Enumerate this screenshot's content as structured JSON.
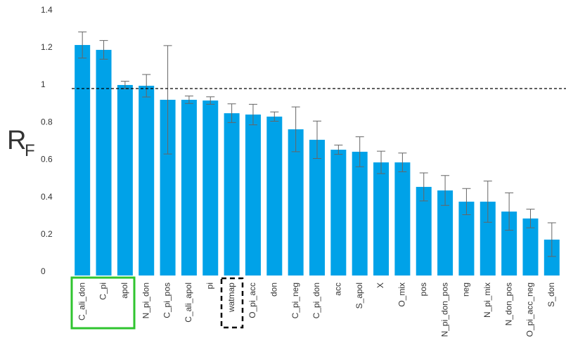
{
  "chart_data": {
    "type": "bar",
    "ylabel": "R",
    "ylabel_sub": "F",
    "categories": [
      "C_ali_don",
      "C_pi",
      "apol",
      "N_pi_don",
      "C_pi_pos",
      "C_ali_apol",
      "pi",
      "watmap",
      "O_pi_acc",
      "don",
      "C_pi_neg",
      "C_pi_don",
      "acc",
      "S_apol",
      "X",
      "O_mix",
      "pos",
      "N_pi_don_pos",
      "neg",
      "N_pi_mix",
      "N_don_pos",
      "O_pi_acc_neg",
      "S_don"
    ],
    "values": [
      1.233,
      1.207,
      1.019,
      1.015,
      0.94,
      0.94,
      0.936,
      0.868,
      0.861,
      0.85,
      0.782,
      0.726,
      0.673,
      0.662,
      0.605,
      0.605,
      0.474,
      0.455,
      0.395,
      0.395,
      0.342,
      0.305,
      0.192
    ],
    "errors": [
      0.07,
      0.05,
      0.02,
      0.06,
      0.29,
      0.02,
      0.02,
      0.05,
      0.055,
      0.025,
      0.12,
      0.1,
      0.025,
      0.08,
      0.06,
      0.05,
      0.075,
      0.08,
      0.07,
      0.11,
      0.1,
      0.05,
      0.09
    ],
    "color": "#00a2e8",
    "error_color": "#666666",
    "reference_line": 1,
    "ylim": [
      0,
      1.4
    ],
    "yticks": [
      0,
      0.2,
      0.4,
      0.6,
      0.8,
      1,
      1.2,
      1.4
    ],
    "grid": false
  }
}
